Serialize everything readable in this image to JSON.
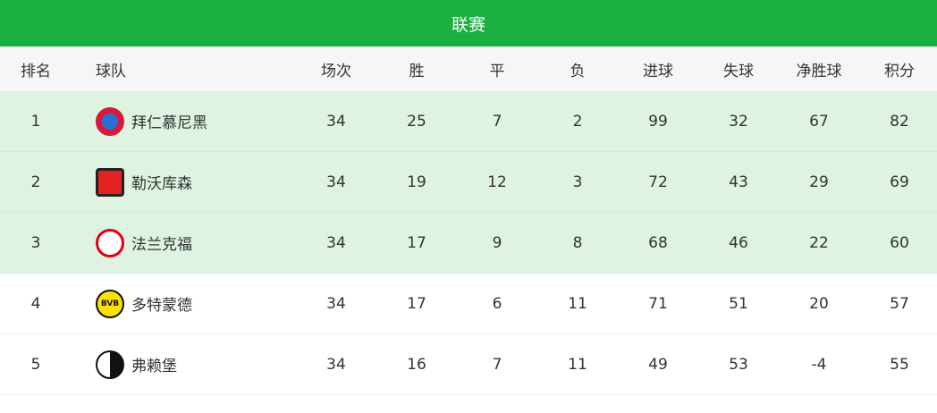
{
  "title": "联赛",
  "headers": [
    "排名",
    "球队",
    "场次",
    "胜",
    "平",
    "负",
    "进球",
    "失球",
    "净胜球",
    "积分"
  ],
  "rows": [
    {
      "rank": "1",
      "team": "拜仁慕尼黑",
      "logo": "bayern-logo-icon",
      "played": "34",
      "w": "25",
      "d": "7",
      "l": "2",
      "gf": "99",
      "ga": "32",
      "gd": "67",
      "pts": "82",
      "highlight": true
    },
    {
      "rank": "2",
      "team": "勒沃库森",
      "logo": "leverkusen-logo-icon",
      "played": "34",
      "w": "19",
      "d": "12",
      "l": "3",
      "gf": "72",
      "ga": "43",
      "gd": "29",
      "pts": "69",
      "highlight": true
    },
    {
      "rank": "3",
      "team": "法兰克福",
      "logo": "frankfurt-logo-icon",
      "played": "34",
      "w": "17",
      "d": "9",
      "l": "8",
      "gf": "68",
      "ga": "46",
      "gd": "22",
      "pts": "60",
      "highlight": true
    },
    {
      "rank": "4",
      "team": "多特蒙德",
      "logo": "dortmund-logo-icon",
      "played": "34",
      "w": "17",
      "d": "6",
      "l": "11",
      "gf": "71",
      "ga": "51",
      "gd": "20",
      "pts": "57",
      "highlight": false
    },
    {
      "rank": "5",
      "team": "弗赖堡",
      "logo": "freiburg-logo-icon",
      "played": "34",
      "w": "16",
      "d": "7",
      "l": "11",
      "gf": "49",
      "ga": "53",
      "gd": "-4",
      "pts": "55",
      "highlight": false
    }
  ],
  "colors": {
    "title_bg": "#19b03f",
    "highlight_bg": "#def3e2",
    "header_bg": "#f5f6f7"
  }
}
